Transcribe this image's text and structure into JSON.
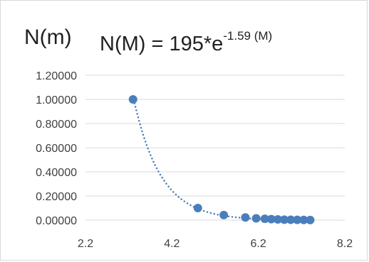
{
  "chart_data": {
    "type": "scatter",
    "ylabel": "N(m)",
    "equation_prefix": "N(M) = 195*e",
    "equation_exponent": "-1.59 (M)",
    "xlim": [
      2.2,
      8.2
    ],
    "ylim": [
      0,
      1.2
    ],
    "x_ticks": [
      2.2,
      4.2,
      6.2,
      8.2
    ],
    "x_tick_labels": [
      "2.2",
      "4.2",
      "6.2",
      "8.2"
    ],
    "y_ticks": [
      0,
      0.2,
      0.4,
      0.6,
      0.8,
      1.0,
      1.2
    ],
    "y_tick_labels": [
      "0.00000",
      "0.20000",
      "0.40000",
      "0.60000",
      "0.80000",
      "1.00000",
      "1.20000"
    ],
    "gridlines": "horizontal",
    "trendline": {
      "type": "exponential",
      "a": 195,
      "b": -1.59,
      "style": "dotted"
    },
    "series": [
      {
        "color": "#4a7ebb",
        "points": [
          [
            3.3,
            1.0
          ],
          [
            4.8,
            0.1
          ],
          [
            5.4,
            0.042
          ],
          [
            5.9,
            0.022
          ],
          [
            6.15,
            0.015
          ],
          [
            6.35,
            0.011
          ],
          [
            6.5,
            0.008
          ],
          [
            6.65,
            0.006
          ],
          [
            6.8,
            0.004
          ],
          [
            6.95,
            0.003
          ],
          [
            7.1,
            0.002
          ],
          [
            7.25,
            0.0015
          ],
          [
            7.4,
            0.001
          ]
        ]
      }
    ]
  }
}
